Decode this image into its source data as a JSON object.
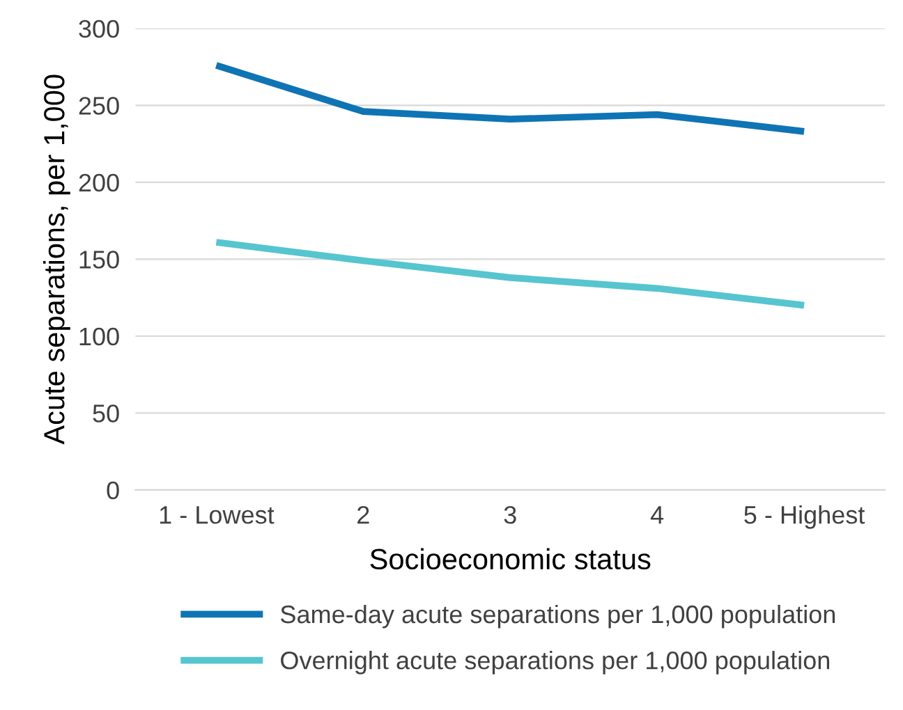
{
  "chart_data": {
    "type": "line",
    "xlabel": "Socioeconomic status",
    "ylabel": "Acute separations, per 1,000",
    "categories": [
      "1 - Lowest",
      "2",
      "3",
      "4",
      "5 - Highest"
    ],
    "series": [
      {
        "name": "Same-day acute separations per 1,000 population",
        "color": "#0f74b4",
        "values": [
          276,
          246,
          241,
          244,
          233
        ]
      },
      {
        "name": "Overnight acute separations per 1,000 population",
        "color": "#56c5cf",
        "values": [
          161,
          149,
          138,
          131,
          120
        ]
      }
    ],
    "ylim": [
      0,
      300
    ],
    "yticks": [
      0,
      50,
      100,
      150,
      200,
      250,
      300
    ],
    "grid": "y",
    "legend": "bottom",
    "marker": "none",
    "line_style": "solid"
  }
}
